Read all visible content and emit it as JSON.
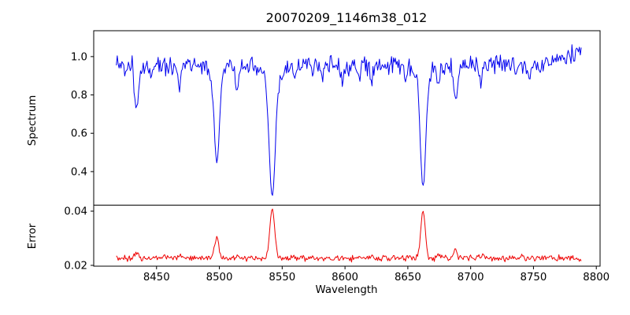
{
  "figure": {
    "title": "20070209_1146m38_012",
    "background": "#ffffff",
    "axis_color": "#000000"
  },
  "chart_data": {
    "type": "line",
    "title": "20070209_1146m38_012",
    "xlabel": "Wavelength",
    "xlim": [
      8400,
      8803
    ],
    "xticks": [
      8450,
      8500,
      8550,
      8600,
      8650,
      8700,
      8750,
      8800
    ],
    "x_data_range": [
      8418,
      8788
    ],
    "x_step": 0.74,
    "grid": false,
    "legend": "none",
    "panels": [
      {
        "name": "spectrum",
        "ylabel": "Spectrum",
        "ylim": [
          0.225,
          1.135
        ],
        "yticks": [
          0.4,
          0.6,
          0.8,
          1.0
        ],
        "ytick_labels": [
          "0.4",
          "0.6",
          "0.8",
          "1.0"
        ],
        "line_color": "#0000ee",
        "continuum": 0.957,
        "right_rise": {
          "start": 8756,
          "slope": 0.002
        },
        "noise_sigma": 0.024,
        "noise_seed": 20070209,
        "absorption_lines": [
          {
            "center": 8434.0,
            "depth": 0.25,
            "width": 1.6
          },
          {
            "center": 8445.5,
            "depth": 0.07,
            "width": 1.0
          },
          {
            "center": 8468.0,
            "depth": 0.13,
            "width": 1.3
          },
          {
            "center": 8498.0,
            "depth": 0.45,
            "width": 2.0
          },
          {
            "center": 8498.0,
            "depth": 0.08,
            "width": 4.5
          },
          {
            "center": 8514.0,
            "depth": 0.17,
            "width": 1.3
          },
          {
            "center": 8542.1,
            "depth": 0.64,
            "width": 2.4
          },
          {
            "center": 8542.1,
            "depth": 0.08,
            "width": 6.0
          },
          {
            "center": 8560.0,
            "depth": 0.06,
            "width": 1.1
          },
          {
            "center": 8582.0,
            "depth": 0.07,
            "width": 1.1
          },
          {
            "center": 8598.0,
            "depth": 0.08,
            "width": 1.2
          },
          {
            "center": 8611.0,
            "depth": 0.06,
            "width": 1.0
          },
          {
            "center": 8621.0,
            "depth": 0.1,
            "width": 1.2
          },
          {
            "center": 8648.0,
            "depth": 0.07,
            "width": 1.0
          },
          {
            "center": 8662.1,
            "depth": 0.6,
            "width": 2.2
          },
          {
            "center": 8662.1,
            "depth": 0.07,
            "width": 5.0
          },
          {
            "center": 8674.0,
            "depth": 0.11,
            "width": 1.1
          },
          {
            "center": 8688.0,
            "depth": 0.21,
            "width": 1.4
          },
          {
            "center": 8708.0,
            "depth": 0.1,
            "width": 1.2
          },
          {
            "center": 8736.0,
            "depth": 0.06,
            "width": 1.0
          },
          {
            "center": 8747.0,
            "depth": 0.07,
            "width": 1.0
          }
        ]
      },
      {
        "name": "error",
        "ylabel": "Error",
        "ylim": [
          0.0197,
          0.0422
        ],
        "yticks": [
          0.02,
          0.04
        ],
        "ytick_labels": [
          "0.02",
          "0.04"
        ],
        "line_color": "#ee0000",
        "baseline": 0.0227,
        "end_taper": {
          "start": 8780,
          "slope": 0.00012
        },
        "noise_sigma": 0.00055,
        "noise_seed": 1146,
        "peaks": [
          {
            "center": 8434.0,
            "height": 0.0018,
            "width": 1.5
          },
          {
            "center": 8468.0,
            "height": 0.0008,
            "width": 1.2
          },
          {
            "center": 8498.0,
            "height": 0.0078,
            "width": 1.6
          },
          {
            "center": 8514.0,
            "height": 0.0012,
            "width": 1.2
          },
          {
            "center": 8542.1,
            "height": 0.0182,
            "width": 1.9
          },
          {
            "center": 8560.0,
            "height": 0.0005,
            "width": 1.0
          },
          {
            "center": 8621.0,
            "height": 0.0007,
            "width": 1.0
          },
          {
            "center": 8662.1,
            "height": 0.0172,
            "width": 1.8
          },
          {
            "center": 8674.0,
            "height": 0.0008,
            "width": 1.0
          },
          {
            "center": 8688.0,
            "height": 0.0028,
            "width": 1.3
          },
          {
            "center": 8708.0,
            "height": 0.0008,
            "width": 1.0
          }
        ]
      }
    ]
  }
}
